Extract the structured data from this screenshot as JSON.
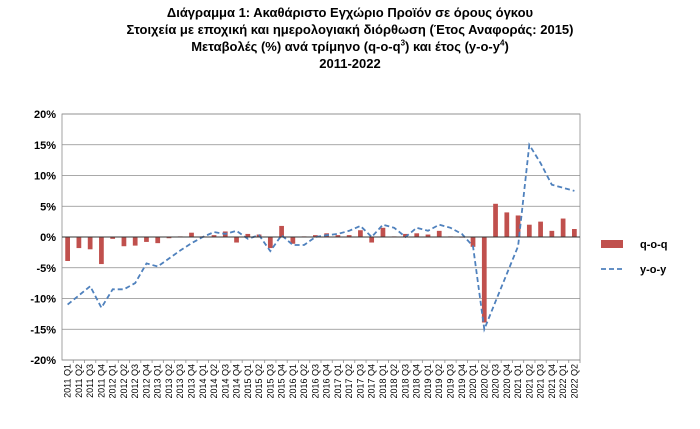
{
  "chart_data": {
    "type": "bar",
    "title_lines": [
      "Διάγραμμα 1: Ακαθάριστο Εγχώριο Προϊόν σε όρους όγκου",
      "Στοιχεία με εποχική και ημερολογιακή διόρθωση (Έτος Αναφοράς: 2015)",
      "Μεταβολές (%) ανά τρίμηνο (q-o-q",
      "3",
      ") και έτος (y-o-y",
      "4",
      ")",
      "2011-2022"
    ],
    "xlabel": "",
    "ylabel": "",
    "ylim": [
      -20,
      20
    ],
    "y_ticks": [
      -20,
      -15,
      -10,
      -5,
      0,
      5,
      10,
      15,
      20
    ],
    "y_tick_labels": [
      "-20%",
      "-15%",
      "-10%",
      "-5%",
      "0%",
      "5%",
      "10%",
      "15%",
      "20%"
    ],
    "grid": true,
    "legend_position": "right",
    "categories": [
      "2011 Q1",
      "2011 Q2",
      "2011 Q3",
      "2011 Q4",
      "2012 Q1",
      "2012 Q2",
      "2012 Q3",
      "2012 Q4",
      "2013 Q1",
      "2013 Q2",
      "2013 Q3",
      "2013 Q4",
      "2014 Q1",
      "2014 Q2",
      "2014 Q3",
      "2014 Q4",
      "2015 Q1",
      "2015 Q2",
      "2015 Q3",
      "2015 Q4",
      "2016 Q1",
      "2016 Q2",
      "2016 Q3",
      "2016 Q4",
      "2017 Q1",
      "2017 Q2",
      "2017 Q3",
      "2017 Q4",
      "2018 Q1",
      "2018 Q2",
      "2018 Q3",
      "2018 Q4",
      "2019 Q1",
      "2019 Q2",
      "2019 Q3",
      "2019 Q4",
      "2020 Q1",
      "2020 Q2",
      "2020 Q3",
      "2020 Q4",
      "2021 Q1",
      "2021 Q2",
      "2021 Q3",
      "2021 Q4",
      "2022 Q1",
      "2022 Q2"
    ],
    "series": [
      {
        "name": "q-o-q",
        "type": "bar",
        "color": "#c0504d",
        "values": [
          -3.9,
          -1.8,
          -2.0,
          -4.4,
          -0.3,
          -1.5,
          -1.4,
          -0.8,
          -1.0,
          -0.2,
          0.1,
          0.7,
          0.1,
          0.3,
          0.9,
          -0.9,
          0.5,
          0.4,
          -1.8,
          1.8,
          -1.1,
          0.1,
          0.3,
          0.6,
          0.3,
          0.3,
          1.1,
          -0.9,
          1.5,
          0.1,
          0.5,
          0.6,
          0.4,
          1.0,
          0.1,
          -0.1,
          -1.6,
          -13.9,
          5.4,
          4.0,
          3.5,
          2.0,
          2.5,
          1.0,
          3.0,
          1.3
        ]
      },
      {
        "name": "y-o-y",
        "type": "line",
        "color": "#4f81bd",
        "dash": true,
        "values": [
          -11.0,
          -9.5,
          -8.0,
          -11.5,
          -8.5,
          -8.5,
          -7.5,
          -4.3,
          -4.8,
          -3.5,
          -2.2,
          -1.0,
          0.0,
          0.8,
          0.5,
          1.0,
          -0.3,
          0.3,
          -2.3,
          0.3,
          -1.3,
          -1.3,
          0.0,
          0.3,
          0.5,
          1.0,
          1.8,
          0.0,
          2.0,
          1.5,
          0.0,
          1.5,
          1.0,
          2.0,
          1.5,
          0.5,
          -1.5,
          -15.0,
          -10.5,
          -6.0,
          -1.5,
          15.0,
          12.0,
          8.5,
          8.0,
          7.5
        ]
      }
    ]
  }
}
